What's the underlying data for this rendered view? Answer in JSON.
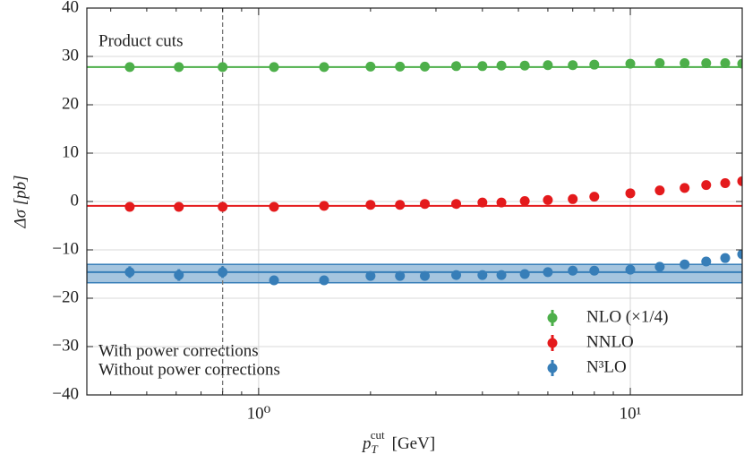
{
  "chart_data": {
    "type": "scatter",
    "y_label": "Δσ [pb]",
    "x_label": {
      "base": "p",
      "sub": "T",
      "sup": "cut",
      "unit": "[GeV]"
    },
    "annotations": [
      {
        "text": "Product cuts",
        "color": "#222222"
      },
      {
        "text": "With power corrections",
        "color": "#222222"
      },
      {
        "text": "Without power corrections",
        "color": "#999999"
      }
    ],
    "x": [
      0.45,
      0.61,
      0.8,
      1.1,
      1.5,
      2.0,
      2.4,
      2.8,
      3.4,
      4.0,
      4.5,
      5.2,
      6.0,
      7.0,
      8.0,
      10,
      12,
      14,
      16,
      18,
      20
    ],
    "series": [
      {
        "name": "NLO (×1/4)",
        "color": "#4daf4a",
        "reference": 27.8,
        "values": [
          27.8,
          27.8,
          27.8,
          27.8,
          27.8,
          27.9,
          27.9,
          27.9,
          28.0,
          28.0,
          28.1,
          28.1,
          28.2,
          28.2,
          28.3,
          28.5,
          28.6,
          28.6,
          28.6,
          28.6,
          28.5
        ],
        "errors": [
          0.3,
          0.3,
          0.3,
          0.3,
          0.3,
          0.3,
          0.3,
          0.3,
          0.3,
          0.3,
          0.3,
          0.3,
          0.3,
          0.3,
          0.3,
          0.3,
          0.3,
          0.3,
          0.3,
          0.3,
          0.3
        ]
      },
      {
        "name": "NNLO",
        "color": "#e41a1c",
        "reference": -0.9,
        "values": [
          -1.1,
          -1.1,
          -1.1,
          -1.1,
          -0.9,
          -0.7,
          -0.7,
          -0.5,
          -0.5,
          -0.2,
          -0.2,
          0.1,
          0.3,
          0.5,
          1.0,
          1.7,
          2.3,
          2.8,
          3.4,
          3.8,
          4.2
        ],
        "errors": [
          0.3,
          0.3,
          0.3,
          0.3,
          0.3,
          0.3,
          0.3,
          0.3,
          0.3,
          0.3,
          0.3,
          0.3,
          0.3,
          0.3,
          0.3,
          0.3,
          0.3,
          0.3,
          0.3,
          0.3,
          0.3
        ]
      },
      {
        "name": "N³LO",
        "color": "#377eb8",
        "reference": -14.6,
        "band": [
          -16.8,
          -13.0
        ],
        "values": [
          -14.6,
          -15.2,
          -14.6,
          -16.3,
          -16.3,
          -15.4,
          -15.4,
          -15.4,
          -15.2,
          -15.2,
          -15.2,
          -15.0,
          -14.6,
          -14.3,
          -14.3,
          -14.1,
          -13.5,
          -13.0,
          -12.4,
          -11.7,
          -10.9
        ],
        "errors": [
          1.2,
          1.2,
          1.2,
          0.5,
          0.5,
          0.5,
          0.5,
          0.5,
          0.5,
          0.5,
          0.5,
          0.5,
          0.5,
          0.5,
          0.5,
          0.5,
          0.5,
          0.5,
          0.5,
          0.5,
          0.5
        ]
      }
    ],
    "vline": 0.8,
    "xlog": true,
    "xlim": [
      0.345,
      20
    ],
    "xticks": [
      {
        "value": 1,
        "label": "10⁰"
      },
      {
        "value": 10,
        "label": "10¹"
      }
    ],
    "xminor": [
      0.4,
      0.5,
      0.6,
      0.7,
      0.8,
      0.9,
      2,
      3,
      4,
      5,
      6,
      7,
      8,
      9,
      20
    ],
    "ylim": [
      -40,
      40
    ],
    "yticks": [
      {
        "value": -40,
        "label": "−40"
      },
      {
        "value": -30,
        "label": "−30"
      },
      {
        "value": -20,
        "label": "−20"
      },
      {
        "value": -10,
        "label": "−10"
      },
      0,
      10,
      20,
      30,
      40
    ],
    "grid": true,
    "legend": "lower right"
  }
}
